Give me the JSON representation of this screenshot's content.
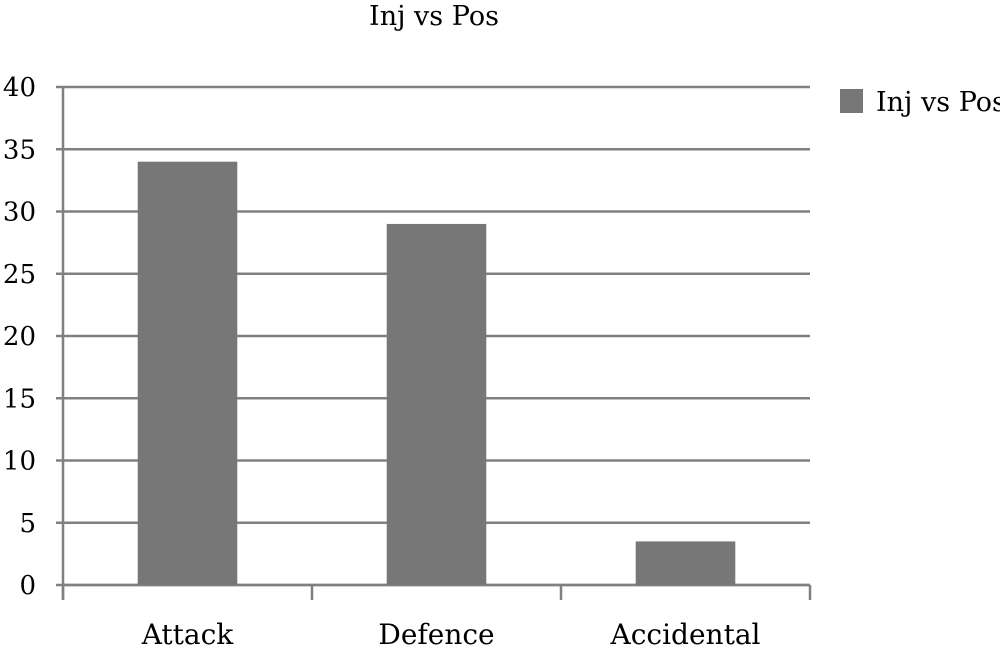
{
  "chart_data": {
    "type": "bar",
    "title": "Inj vs Pos",
    "categories": [
      "Attack",
      "Defence",
      "Accidental"
    ],
    "series": [
      {
        "name": "Inj vs Pos",
        "values": [
          34,
          29,
          3.5
        ],
        "color": "#777777"
      }
    ],
    "xlabel": "",
    "ylabel": "",
    "ylim": [
      0,
      40
    ],
    "yticks": [
      0,
      5,
      10,
      15,
      20,
      25,
      30,
      35,
      40
    ],
    "grid": true,
    "legend": "top-right",
    "colors": {
      "gridline": "#808080",
      "axis": "#808080"
    }
  }
}
